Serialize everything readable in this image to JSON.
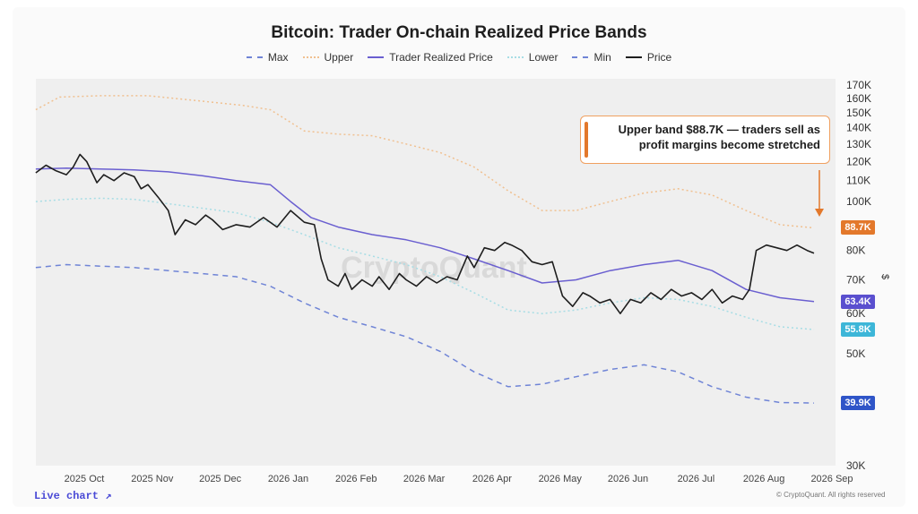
{
  "title": "Bitcoin: Trader On-chain Realized Price Bands",
  "legend": [
    {
      "label": "Max",
      "color": "#6f84d6",
      "style": "dashed"
    },
    {
      "label": "Upper",
      "color": "#f0c090",
      "style": "dotted"
    },
    {
      "label": "Trader Realized Price",
      "color": "#6a5fd0",
      "style": "solid"
    },
    {
      "label": "Lower",
      "color": "#a7dde5",
      "style": "dotted"
    },
    {
      "label": "Min",
      "color": "#6f84d6",
      "style": "dashed"
    },
    {
      "label": "Price",
      "color": "#1e1e1e",
      "style": "solid"
    }
  ],
  "callout": {
    "line1": "Upper band $88.7K — traders sell as",
    "line2": "profit margins become stretched"
  },
  "badges": [
    {
      "label": "88.7K",
      "value": 88700,
      "color": "#e3782b"
    },
    {
      "label": "63.4K",
      "value": 63400,
      "color": "#5a4fcf"
    },
    {
      "label": "55.8K",
      "value": 55800,
      "color": "#3db6d8"
    },
    {
      "label": "39.9K",
      "value": 39900,
      "color": "#2f55c8"
    }
  ],
  "watermark": "CryptoQuant",
  "currency_symbol": "$",
  "footer": {
    "live_chart": "Live chart ↗",
    "copyright": "© CryptoQuant. All rights reserved"
  },
  "chart_data": {
    "type": "line",
    "title": "Bitcoin: Trader On-chain Realized Price Bands",
    "y_scale": "log",
    "ylim": [
      30000,
      175000
    ],
    "y_ticks": [
      {
        "label": "170K",
        "value": 170000
      },
      {
        "label": "160K",
        "value": 160000
      },
      {
        "label": "150K",
        "value": 150000
      },
      {
        "label": "140K",
        "value": 140000
      },
      {
        "label": "130K",
        "value": 130000
      },
      {
        "label": "120K",
        "value": 120000
      },
      {
        "label": "110K",
        "value": 110000
      },
      {
        "label": "100K",
        "value": 100000
      },
      {
        "label": "80K",
        "value": 80000
      },
      {
        "label": "70K",
        "value": 70000
      },
      {
        "label": "60K",
        "value": 60000
      },
      {
        "label": "50K",
        "value": 50000
      },
      {
        "label": "30K",
        "value": 30000
      }
    ],
    "x_ticks": [
      "2025 Oct",
      "2025 Nov",
      "2025 Dec",
      "2026 Jan",
      "2026 Feb",
      "2026 Mar",
      "2026 Apr",
      "2026 May",
      "2026 Jun",
      "2026 Jul",
      "2026 Aug",
      "2026 Sep"
    ],
    "x_range": [
      -0.45,
      11.15
    ],
    "series": [
      {
        "name": "Upper",
        "x": [
          -0.45,
          -0.1,
          0.5,
          1.2,
          2,
          2.6,
          3,
          3.5,
          4,
          4.5,
          5,
          5.5,
          6,
          6.5,
          7,
          7.5,
          8,
          8.5,
          9,
          9.5,
          10,
          10.5,
          11
        ],
        "y": [
          152000,
          161000,
          162000,
          162000,
          158000,
          155000,
          152000,
          138000,
          136000,
          135000,
          130000,
          125000,
          117000,
          105000,
          96000,
          96000,
          100000,
          104000,
          106000,
          103000,
          96000,
          90000,
          88700
        ]
      },
      {
        "name": "Trader Realized Price",
        "x": [
          -0.45,
          0,
          0.5,
          1,
          1.5,
          2,
          2.5,
          3,
          3.3,
          3.6,
          4,
          4.5,
          5,
          5.5,
          6,
          6.5,
          7,
          7.5,
          8,
          8.5,
          9,
          9.5,
          10,
          10.5,
          11
        ],
        "y": [
          116000,
          116500,
          116000,
          115500,
          114500,
          112500,
          110000,
          108000,
          100000,
          93000,
          89000,
          86000,
          84000,
          81000,
          77000,
          73000,
          69000,
          70000,
          73000,
          75000,
          76500,
          73000,
          67000,
          64500,
          63400
        ]
      },
      {
        "name": "Lower",
        "x": [
          -0.45,
          0,
          0.5,
          1,
          1.5,
          2,
          2.5,
          3,
          3.5,
          4,
          4.5,
          5,
          5.5,
          6,
          6.5,
          7,
          7.5,
          8,
          8.5,
          9,
          9.5,
          10,
          10.5,
          11
        ],
        "y": [
          100000,
          101000,
          101500,
          101000,
          99000,
          97000,
          95000,
          91000,
          86000,
          81000,
          78000,
          75000,
          71000,
          66000,
          61000,
          60000,
          61000,
          63000,
          64500,
          64000,
          62000,
          59000,
          56500,
          55800
        ]
      },
      {
        "name": "Min",
        "x": [
          -0.45,
          0,
          0.5,
          1,
          1.5,
          2,
          2.5,
          3,
          3.5,
          4,
          4.5,
          5,
          5.5,
          6,
          6.5,
          7,
          7.5,
          8,
          8.5,
          9,
          9.5,
          10,
          10.5,
          11
        ],
        "y": [
          74000,
          75000,
          74500,
          74000,
          73000,
          72000,
          71000,
          68000,
          63000,
          59000,
          56500,
          54000,
          50500,
          46000,
          43000,
          43500,
          45000,
          46500,
          47500,
          46000,
          43000,
          41000,
          40000,
          39900
        ]
      },
      {
        "name": "Price",
        "x": [
          -0.45,
          -0.3,
          -0.15,
          0,
          0.1,
          0.2,
          0.3,
          0.45,
          0.55,
          0.7,
          0.85,
          1,
          1.1,
          1.2,
          1.35,
          1.5,
          1.6,
          1.75,
          1.9,
          2.05,
          2.15,
          2.3,
          2.5,
          2.7,
          2.9,
          3.1,
          3.3,
          3.5,
          3.65,
          3.75,
          3.85,
          4.0,
          4.1,
          4.2,
          4.35,
          4.5,
          4.6,
          4.75,
          4.9,
          5.0,
          5.15,
          5.3,
          5.45,
          5.6,
          5.75,
          5.9,
          6.0,
          6.15,
          6.3,
          6.45,
          6.55,
          6.7,
          6.85,
          7.0,
          7.15,
          7.3,
          7.45,
          7.6,
          7.7,
          7.85,
          8.0,
          8.15,
          8.3,
          8.45,
          8.6,
          8.75,
          8.9,
          9.05,
          9.2,
          9.35,
          9.5,
          9.65,
          9.8,
          9.95,
          10.05,
          10.15,
          10.3,
          10.45,
          10.6,
          10.75,
          10.9,
          11.0
        ],
        "y": [
          114000,
          118000,
          115000,
          113000,
          117000,
          124000,
          120000,
          109000,
          113000,
          110000,
          114000,
          112000,
          106000,
          108000,
          102000,
          96000,
          86000,
          92000,
          90000,
          94000,
          92000,
          88000,
          90000,
          89000,
          93000,
          89000,
          96000,
          91000,
          90000,
          77000,
          70000,
          68000,
          72000,
          67000,
          70000,
          68000,
          71000,
          67000,
          72000,
          70000,
          68000,
          71000,
          69000,
          71000,
          70000,
          78000,
          74000,
          81000,
          80000,
          83000,
          82000,
          80000,
          76000,
          75000,
          76000,
          65000,
          62000,
          66000,
          65000,
          63000,
          64000,
          60000,
          64000,
          63000,
          66000,
          64000,
          67000,
          65000,
          66000,
          64000,
          67000,
          63000,
          65000,
          64000,
          67000,
          80000,
          82000,
          81000,
          80000,
          82000,
          80000,
          79000
        ]
      }
    ]
  }
}
